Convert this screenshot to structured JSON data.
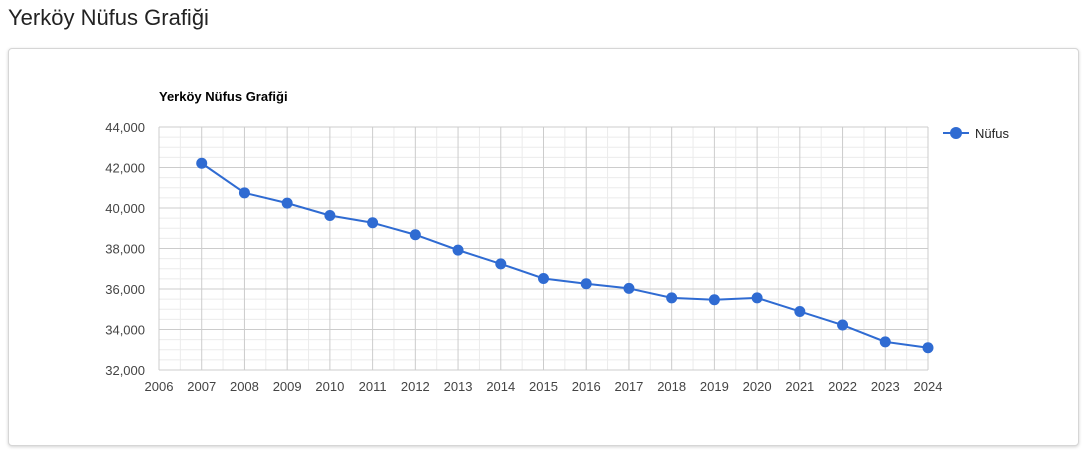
{
  "page": {
    "title": "Yerköy Nüfus Grafiği"
  },
  "chart_data": {
    "type": "line",
    "title": "Yerköy Nüfus Grafiği",
    "xlabel": "",
    "ylabel": "",
    "x": [
      2007,
      2008,
      2009,
      2010,
      2011,
      2012,
      2013,
      2014,
      2015,
      2016,
      2017,
      2018,
      2019,
      2020,
      2021,
      2022,
      2023,
      2024
    ],
    "series": [
      {
        "name": "Nüfus",
        "values": [
          42210,
          40750,
          40240,
          39630,
          39270,
          38680,
          37920,
          37240,
          36520,
          36260,
          36030,
          35560,
          35470,
          35560,
          34890,
          34220,
          33390,
          33100
        ]
      }
    ],
    "xlim": [
      2006,
      2024
    ],
    "ylim": [
      32000,
      44000
    ],
    "x_ticks": [
      "2006",
      "2007",
      "2008",
      "2009",
      "2010",
      "2011",
      "2012",
      "2013",
      "2014",
      "2015",
      "2016",
      "2017",
      "2018",
      "2019",
      "2020",
      "2021",
      "2022",
      "2023",
      "2024"
    ],
    "y_ticks": [
      "32,000",
      "34,000",
      "36,000",
      "38,000",
      "40,000",
      "42,000",
      "44,000"
    ],
    "grid": true,
    "legend_position": "right",
    "colors": {
      "series": "#2f6bd2",
      "grid_major": "#cccccc",
      "grid_minor": "#ebebeb"
    }
  }
}
